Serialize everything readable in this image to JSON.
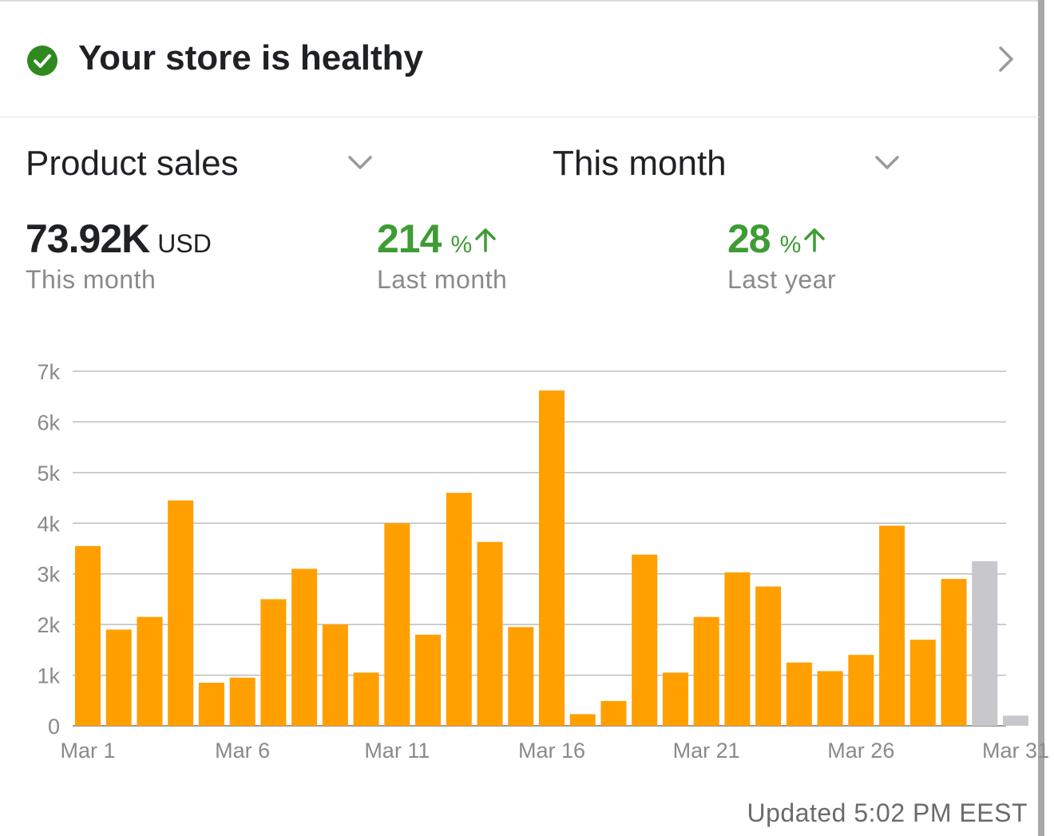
{
  "health": {
    "title": "Your store is healthy"
  },
  "selectors": {
    "metric": "Product sales",
    "period": "This month"
  },
  "stats": {
    "current": {
      "value": "73.92K",
      "unit": "USD",
      "label": "This month"
    },
    "last_month": {
      "value": "214",
      "unit": "%",
      "label": "Last month"
    },
    "last_year": {
      "value": "28",
      "unit": "%",
      "label": "Last year"
    }
  },
  "colors": {
    "bar": "#ff9f00",
    "bar_incomplete": "#c7c7cc",
    "positive": "#3e9c35",
    "check": "#2f8a1e"
  },
  "chart_data": {
    "type": "bar",
    "categories": [
      "Mar 1",
      "Mar 2",
      "Mar 3",
      "Mar 4",
      "Mar 5",
      "Mar 6",
      "Mar 7",
      "Mar 8",
      "Mar 9",
      "Mar 10",
      "Mar 11",
      "Mar 12",
      "Mar 13",
      "Mar 14",
      "Mar 15",
      "Mar 16",
      "Mar 17",
      "Mar 18",
      "Mar 19",
      "Mar 20",
      "Mar 21",
      "Mar 22",
      "Mar 23",
      "Mar 24",
      "Mar 25",
      "Mar 26",
      "Mar 27",
      "Mar 28",
      "Mar 29",
      "Mar 30",
      "Mar 31"
    ],
    "values": [
      3550,
      1900,
      2150,
      4450,
      850,
      950,
      2500,
      3100,
      2000,
      1050,
      4000,
      1800,
      4600,
      3630,
      1950,
      6620,
      230,
      490,
      3380,
      1050,
      2150,
      3030,
      2750,
      1250,
      1080,
      1400,
      3950,
      1700,
      2900,
      3250,
      200
    ],
    "incomplete_from_index": 29,
    "x_tick_labels": [
      "Mar 1",
      "Mar 6",
      "Mar 11",
      "Mar 16",
      "Mar 21",
      "Mar 26",
      "Mar 31"
    ],
    "y_tick_labels": [
      "0",
      "1k",
      "2k",
      "3k",
      "4k",
      "5k",
      "6k",
      "7k"
    ],
    "ylim": [
      0,
      7000
    ],
    "grid": true
  },
  "footer": {
    "updated": "Updated 5:02 PM EEST"
  }
}
